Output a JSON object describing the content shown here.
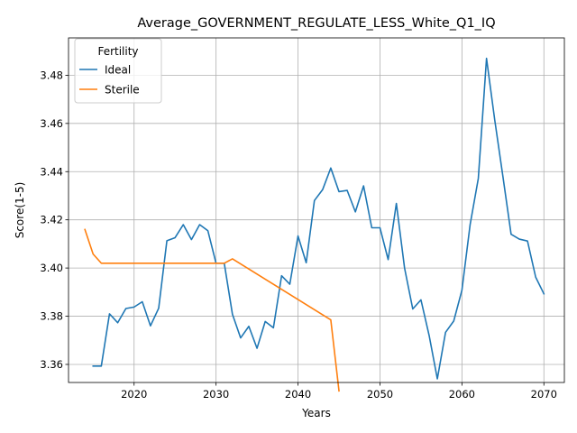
{
  "chart_data": {
    "type": "line",
    "title": "Average_GOVERNMENT_REGULATE_LESS_White_Q1_IQ",
    "xlabel": "Years",
    "ylabel": "Score(1-5)",
    "xlim": [
      2012,
      2072.5
    ],
    "ylim": [
      3.3525,
      3.4955
    ],
    "xticks": [
      2020,
      2030,
      2040,
      2050,
      2060,
      2070
    ],
    "yticks": [
      3.36,
      3.38,
      3.4,
      3.42,
      3.44,
      3.46,
      3.48
    ],
    "ytick_labels": [
      "3.36",
      "3.38",
      "3.40",
      "3.42",
      "3.44",
      "3.46",
      "3.48"
    ],
    "grid": true,
    "legend": {
      "title": "Fertility",
      "placement": "top-left"
    },
    "series": [
      {
        "name": "Ideal",
        "color": "#1f77b4",
        "x": [
          2015,
          2016,
          2017,
          2018,
          2019,
          2020,
          2021,
          2022,
          2023,
          2024,
          2025,
          2026,
          2027,
          2028,
          2029,
          2030,
          2031,
          2032,
          2033,
          2034,
          2035,
          2036,
          2037,
          2038,
          2039,
          2040,
          2041,
          2042,
          2043,
          2044,
          2045,
          2046,
          2047,
          2048,
          2049,
          2050,
          2051,
          2052,
          2053,
          2054,
          2055,
          2056,
          2057,
          2058,
          2059,
          2060,
          2061,
          2062,
          2063,
          2064,
          2065,
          2066,
          2067,
          2068,
          2069,
          2070
        ],
        "y": [
          3.3593,
          3.3593,
          3.381,
          3.3773,
          3.3832,
          3.3838,
          3.386,
          3.376,
          3.3833,
          3.4113,
          3.4126,
          3.418,
          3.4118,
          3.418,
          3.4155,
          3.402,
          3.402,
          3.3808,
          3.371,
          3.3758,
          3.3667,
          3.3778,
          3.3752,
          3.3968,
          3.3933,
          3.4133,
          3.4022,
          3.428,
          3.4325,
          3.4415,
          3.4317,
          3.4322,
          3.4233,
          3.4341,
          3.4167,
          3.4167,
          3.4035,
          3.4268,
          3.4,
          3.383,
          3.3868,
          3.372,
          3.354,
          3.3733,
          3.378,
          3.3908,
          3.418,
          3.4372,
          3.487,
          3.4615,
          3.438,
          3.414,
          3.412,
          3.4112,
          3.3962,
          3.3893
        ]
      },
      {
        "name": "Sterile",
        "color": "#ff7f0e",
        "x": [
          2014,
          2015,
          2016,
          2017,
          2018,
          2019,
          2020,
          2021,
          2022,
          2023,
          2024,
          2025,
          2026,
          2027,
          2028,
          2029,
          2030,
          2031,
          2032,
          2044,
          2045
        ],
        "y": [
          3.416,
          3.4058,
          3.402,
          3.402,
          3.402,
          3.402,
          3.402,
          3.402,
          3.402,
          3.402,
          3.402,
          3.402,
          3.402,
          3.402,
          3.402,
          3.402,
          3.402,
          3.402,
          3.4038,
          3.3785,
          3.349
        ]
      }
    ]
  }
}
